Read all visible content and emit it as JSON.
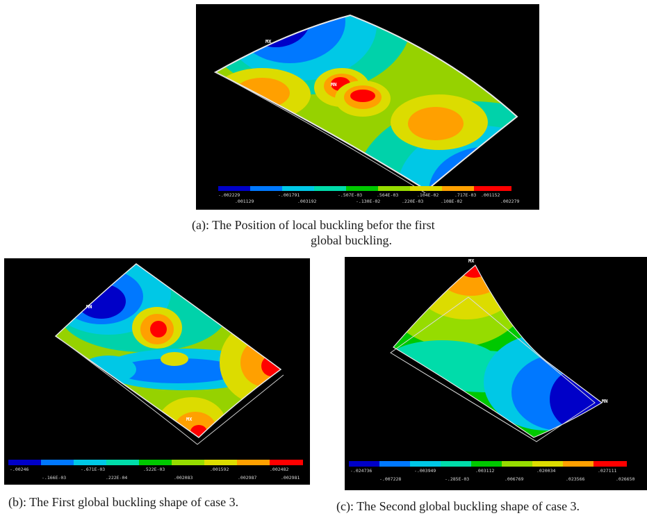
{
  "captions": {
    "a_line1": "(a): The  Position of local buckling befor the first",
    "a_line2": "global buckling.",
    "b": "(b): The First global buckling shape of case 3.",
    "c": "(c): The Second global buckling shape of case 3."
  },
  "node_tags": {
    "mx": "MX",
    "mn": "MN"
  },
  "contour_colors": [
    "#0000c8",
    "#0078ff",
    "#00c8e6",
    "#00dcaa",
    "#00c800",
    "#96dc00",
    "#dcdc00",
    "#ffa000",
    "#ff0000"
  ],
  "panel_a": {
    "legend_top": [
      "-.002229",
      "-.001791",
      "-.507E-03",
      ".564E-03",
      ".104E-02",
      ".717E-03"
    ],
    "legend_bottom": [
      ".001129",
      ".003192",
      "-.130E-02",
      ".220E-03",
      ".108E-02",
      ".002279"
    ],
    "legend_extra_top": ".001152"
  },
  "panel_b": {
    "legend_top": [
      "-.00246",
      "-.671E-03",
      ".522E-03",
      ".001592",
      ".002482"
    ],
    "legend_bottom": [
      "-.166E-03",
      ".222E-04",
      ".002083",
      ".002987",
      ".002981"
    ]
  },
  "panel_c": {
    "legend_top": [
      "-.024736",
      "-.003949",
      ".003112",
      ".020034",
      ".027111"
    ],
    "legend_bottom": [
      "-.007228",
      "-.285E-03",
      ".006769",
      ".023566",
      ".026650"
    ]
  }
}
